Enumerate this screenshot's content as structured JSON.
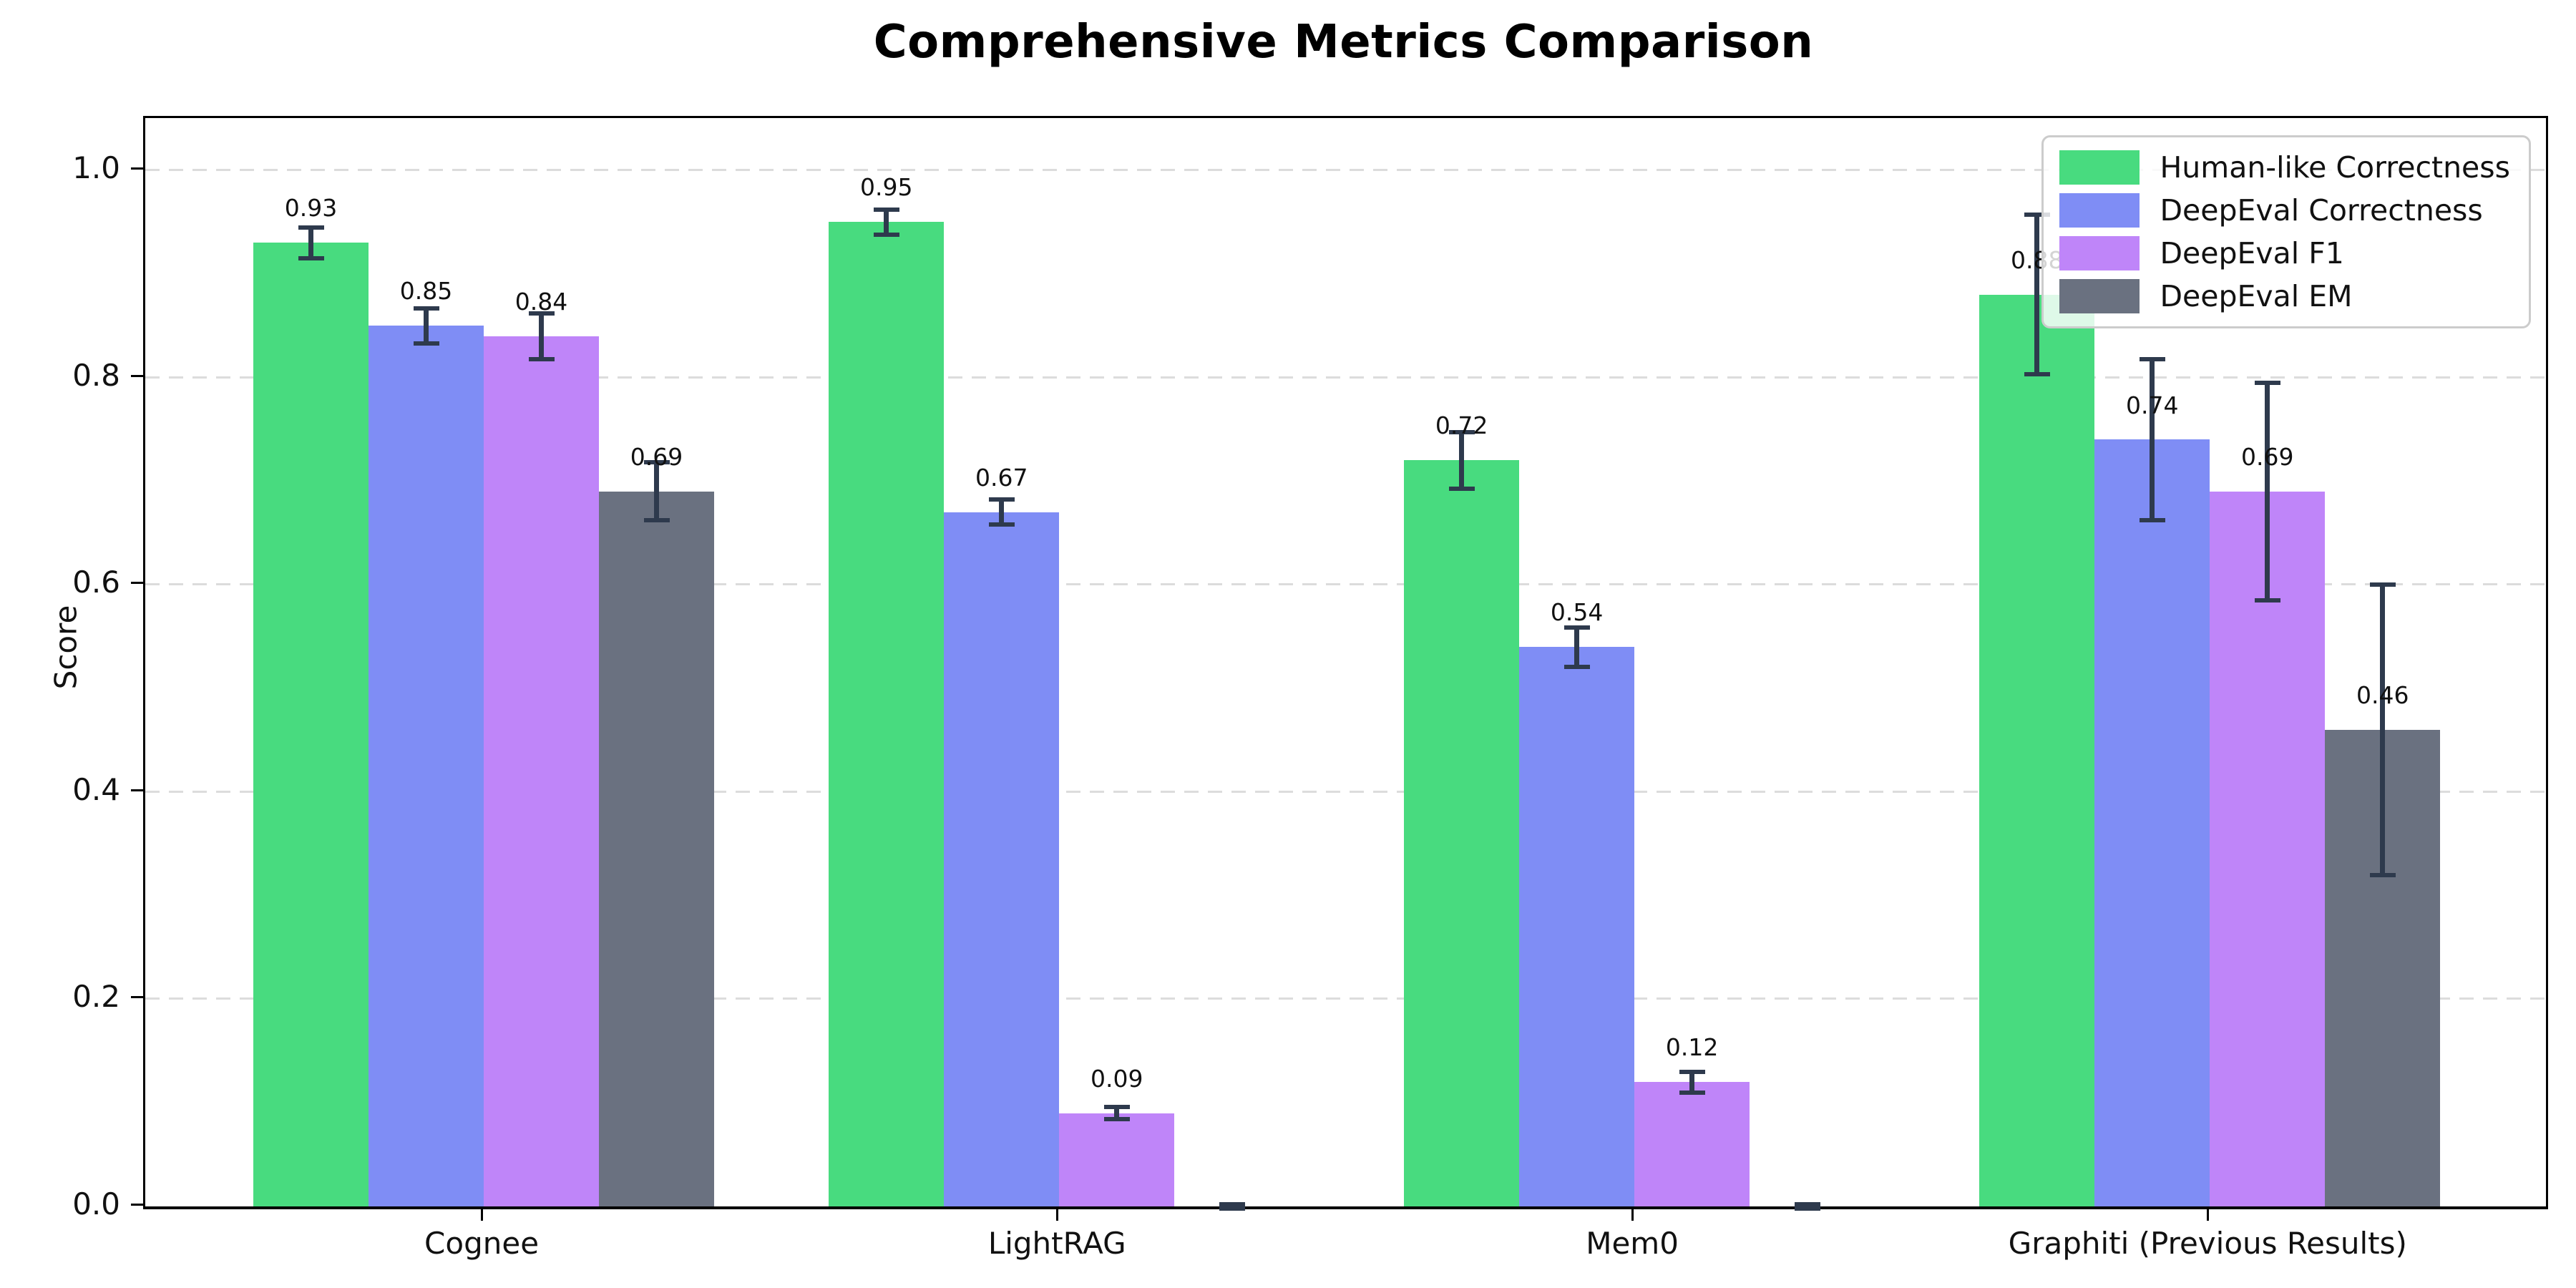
{
  "title": "Comprehensive Metrics Comparison",
  "chart_data": {
    "type": "bar",
    "title": "Comprehensive Metrics Comparison",
    "xlabel": "",
    "ylabel": "Score",
    "categories": [
      "Cognee",
      "LightRAG",
      "Mem0",
      "Graphiti (Previous Results)"
    ],
    "series": [
      {
        "name": "Human-like Correctness",
        "color": "#48db7f",
        "values": [
          0.93,
          0.95,
          0.72,
          0.88
        ],
        "errors": [
          0.015,
          0.012,
          0.027,
          0.077
        ],
        "labels": [
          "0.93",
          "0.95",
          "0.72",
          "0.88"
        ]
      },
      {
        "name": "DeepEval Correctness",
        "color": "#7f8df5",
        "values": [
          0.85,
          0.67,
          0.54,
          0.74
        ],
        "errors": [
          0.017,
          0.012,
          0.019,
          0.078
        ],
        "labels": [
          "0.85",
          "0.67",
          "0.54",
          "0.74"
        ]
      },
      {
        "name": "DeepEval F1",
        "color": "#bf85f9",
        "values": [
          0.84,
          0.09,
          0.12,
          0.69
        ],
        "errors": [
          0.022,
          0.006,
          0.01,
          0.105
        ],
        "labels": [
          "0.84",
          "0.09",
          "0.12",
          "0.69"
        ]
      },
      {
        "name": "DeepEval EM",
        "color": "#6a7180",
        "values": [
          0.69,
          0.0,
          0.0,
          0.46
        ],
        "errors": [
          0.028,
          0.002,
          0.002,
          0.14
        ],
        "labels": [
          "0.69",
          "",
          "",
          "0.46"
        ]
      }
    ],
    "ylim": [
      0.0,
      1.05
    ],
    "yticks": [
      "0.0",
      "0.2",
      "0.4",
      "0.6",
      "0.8",
      "1.0"
    ],
    "grid": "horizontal-dashed",
    "legend_position": "upper-right",
    "error_bar_color": "#2e3a4d",
    "background_color": "#ffffff"
  }
}
